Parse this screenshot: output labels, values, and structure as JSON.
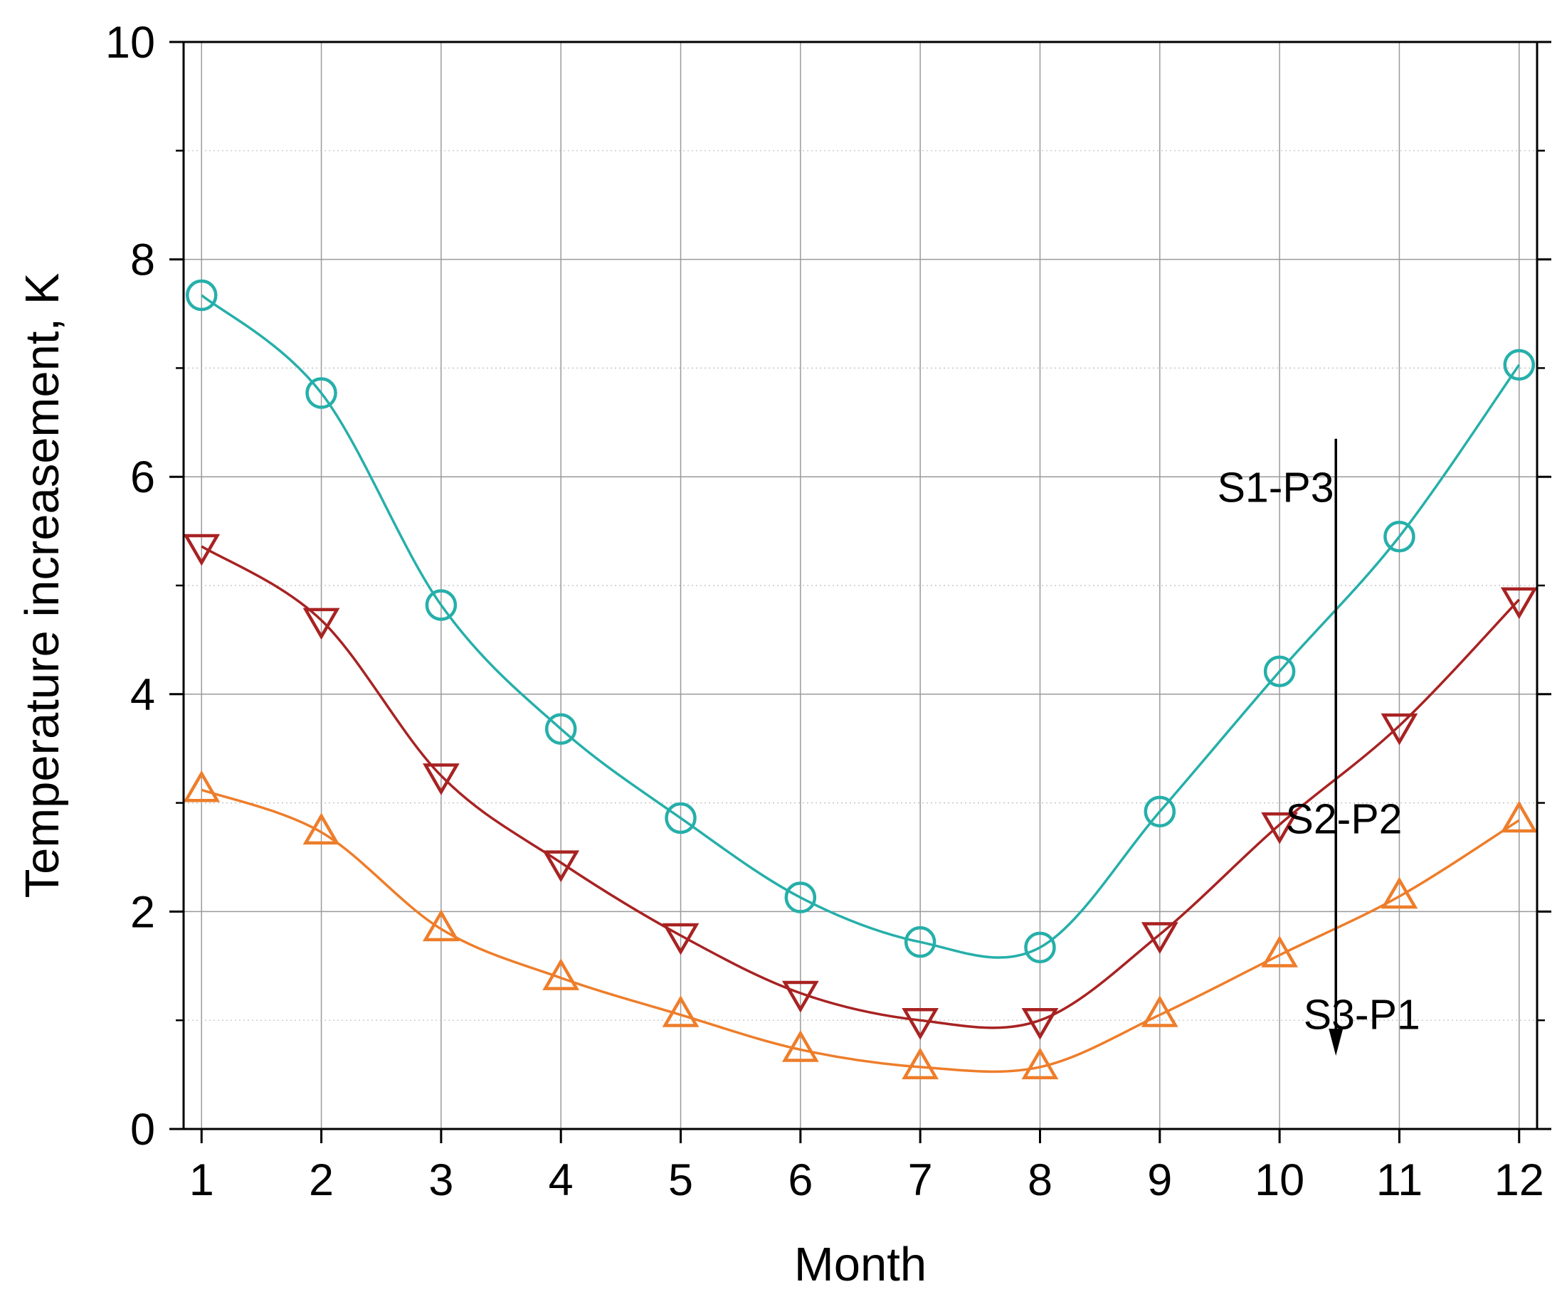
{
  "chart_data": {
    "type": "line",
    "title": "",
    "xlabel": "Month",
    "ylabel": "Temperature increasement, K",
    "x": [
      1,
      2,
      3,
      4,
      5,
      6,
      7,
      8,
      9,
      10,
      11,
      12
    ],
    "xlim": [
      0.85,
      12.15
    ],
    "ylim": [
      0,
      10
    ],
    "x_ticks": [
      1,
      2,
      3,
      4,
      5,
      6,
      7,
      8,
      9,
      10,
      11,
      12
    ],
    "y_ticks": [
      0,
      2,
      4,
      6,
      8,
      10
    ],
    "y_minor_ticks": [
      1,
      3,
      5,
      7,
      9
    ],
    "grid": true,
    "series": [
      {
        "name": "S1-P3",
        "marker": "circle",
        "color": "#26AFAA",
        "values": [
          7.67,
          6.77,
          4.82,
          3.68,
          2.86,
          2.13,
          1.72,
          1.67,
          2.92,
          4.21,
          5.45,
          7.03
        ]
      },
      {
        "name": "S2-P2",
        "marker": "triangle-down",
        "color": "#A82222",
        "values": [
          5.36,
          4.68,
          3.25,
          2.45,
          1.78,
          1.25,
          1.0,
          1.0,
          1.79,
          2.8,
          3.71,
          4.87
        ]
      },
      {
        "name": "S3-P1",
        "marker": "triangle-up",
        "color": "#EE7D2A",
        "values": [
          3.12,
          2.73,
          1.84,
          1.39,
          1.05,
          0.73,
          0.57,
          0.57,
          1.05,
          1.6,
          2.14,
          2.84
        ]
      }
    ],
    "annotations": {
      "labels": [
        "S1-P3",
        "S2-P2",
        "S3-P1"
      ],
      "arrow": {
        "x": 10.47,
        "y_start": 6.35,
        "y_end": 0.7,
        "direction": "down"
      }
    }
  }
}
